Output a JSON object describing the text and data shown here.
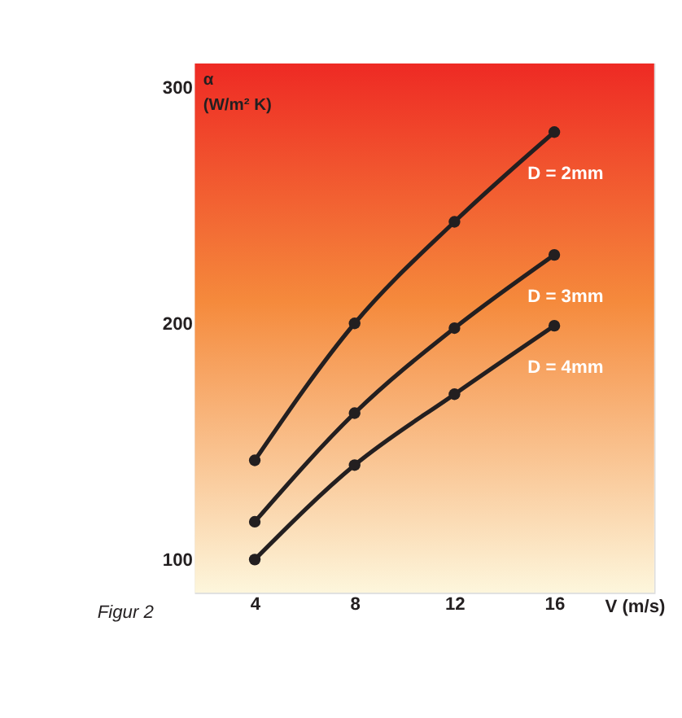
{
  "chart_data": {
    "type": "line",
    "ylabel": "α\n(W/m² K)",
    "xlabel": "V (m/s)",
    "annotations": [
      "Figur 2"
    ],
    "x": [
      4,
      8,
      12,
      16
    ],
    "series": [
      {
        "name": "D = 2mm",
        "color": "#231f20",
        "values": [
          142,
          200,
          243,
          281
        ]
      },
      {
        "name": "D = 3mm",
        "color": "#231f20",
        "values": [
          116,
          162,
          198,
          229
        ]
      },
      {
        "name": "D = 4mm",
        "color": "#231f20",
        "values": [
          100,
          140,
          170,
          199
        ]
      }
    ],
    "xlim": [
      1.6,
      20
    ],
    "ylim": [
      86,
      310
    ],
    "xticks": [
      4,
      8,
      12,
      16
    ],
    "yticks": [
      100,
      200,
      300
    ],
    "grid": false,
    "marker": "circle",
    "line_style": "solid"
  }
}
